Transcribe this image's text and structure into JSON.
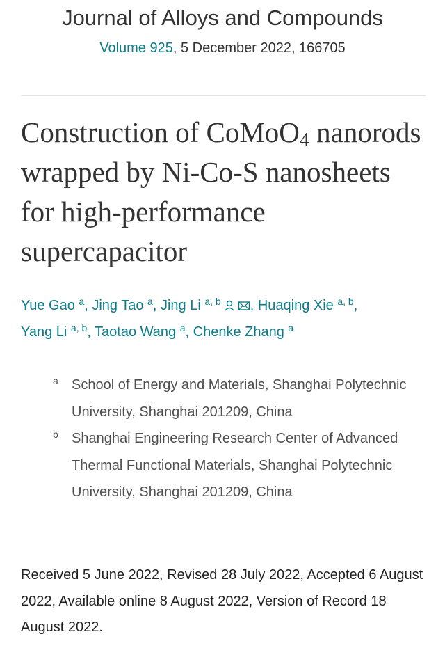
{
  "header": {
    "journal": "Journal of Alloys and Compounds",
    "volume": "Volume 925",
    "issue_info": ", 5 December 2022, 166705"
  },
  "article": {
    "title": {
      "before_subscript": "Construction of CoMoO",
      "subscript": "4",
      "after_subscript": "nanorods wrapped by Ni-Co-S nanosheets for high-performance supercapacitor"
    },
    "author_delimiter": ",",
    "authors": [
      {
        "name": "Yue Gao",
        "affiliations": "a"
      },
      {
        "name": "Jing Tao",
        "affiliations": "a"
      },
      {
        "name": "Jing Li",
        "affiliations": "a, b",
        "corresponding": true
      },
      {
        "name": "Huaqing Xie",
        "affiliations": "a, b"
      },
      {
        "name": "Yang Li",
        "affiliations": "a, b"
      },
      {
        "name": "Taotao Wang",
        "affiliations": "a"
      },
      {
        "name": "Chenke Zhang",
        "affiliations": "a"
      }
    ],
    "affiliations": [
      {
        "label": "a",
        "text": "School of Energy and Materials, Shanghai Polytechnic University, Shanghai 201209, China"
      },
      {
        "label": "b",
        "text": "Shanghai Engineering Research Center of Advanced Thermal Functional Materials, Shanghai Polytechnic University, Shanghai 201209, China"
      }
    ],
    "dates": "Received 5 June 2022, Revised 28 July 2022, Accepted 6 August 2022, Available online 8 August 2022, Version of Record 18 August 2022."
  }
}
